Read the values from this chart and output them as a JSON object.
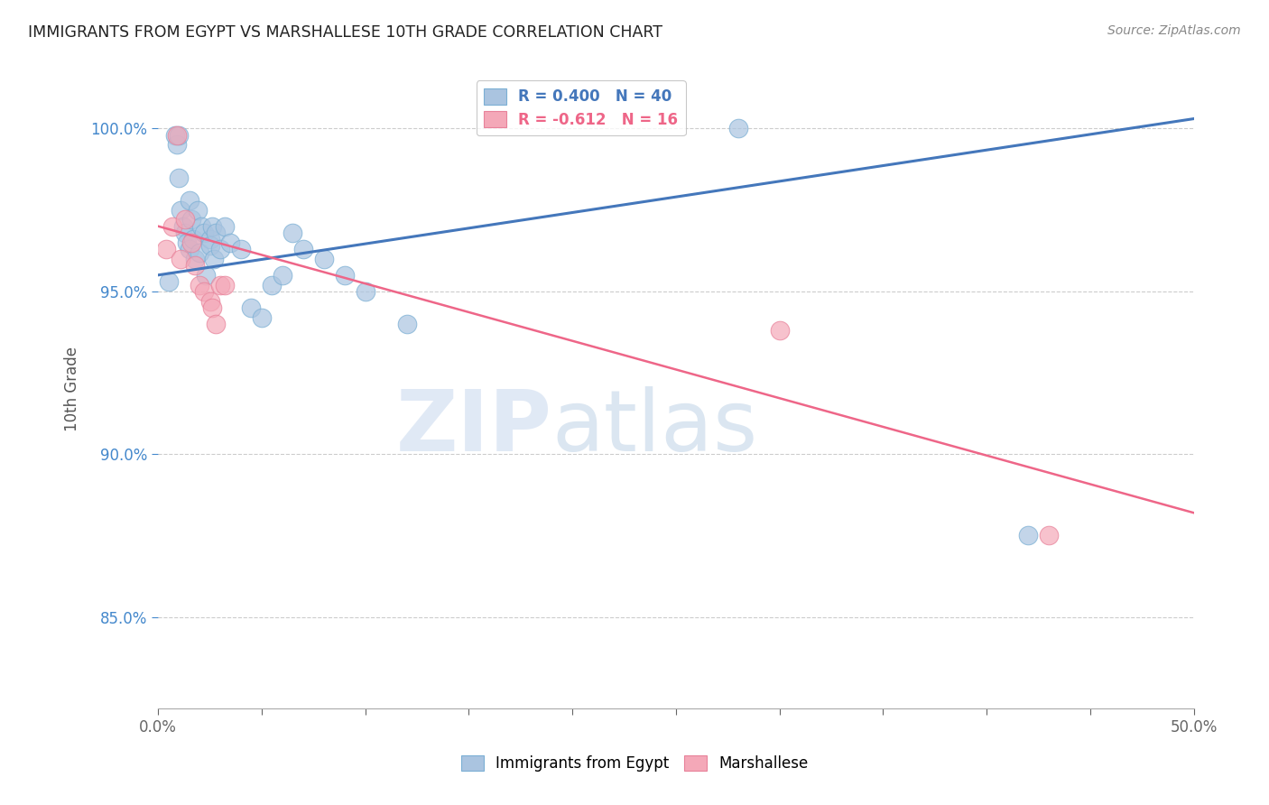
{
  "title": "IMMIGRANTS FROM EGYPT VS MARSHALLESE 10TH GRADE CORRELATION CHART",
  "source": "Source: ZipAtlas.com",
  "ylabel": "10th Grade",
  "ytick_labels": [
    "85.0%",
    "90.0%",
    "95.0%",
    "100.0%"
  ],
  "ytick_values": [
    0.85,
    0.9,
    0.95,
    1.0
  ],
  "xmin": 0.0,
  "xmax": 0.5,
  "ymin": 0.822,
  "ymax": 1.018,
  "legend1_label": "R = 0.400   N = 40",
  "legend2_label": "R = -0.612   N = 16",
  "legend1_color": "#aac4e0",
  "legend2_color": "#f4a8b8",
  "line1_color": "#4477bb",
  "line2_color": "#ee6688",
  "watermark_zip": "ZIP",
  "watermark_atlas": "atlas",
  "grid_color": "#cccccc",
  "background_color": "#ffffff",
  "egypt_x": [
    0.005,
    0.008,
    0.009,
    0.01,
    0.01,
    0.011,
    0.012,
    0.013,
    0.014,
    0.015,
    0.015,
    0.016,
    0.017,
    0.018,
    0.019,
    0.02,
    0.021,
    0.022,
    0.023,
    0.025,
    0.025,
    0.026,
    0.027,
    0.028,
    0.03,
    0.032,
    0.035,
    0.04,
    0.045,
    0.05,
    0.055,
    0.06,
    0.065,
    0.07,
    0.08,
    0.09,
    0.1,
    0.12,
    0.28,
    0.42
  ],
  "egypt_y": [
    0.953,
    0.998,
    0.995,
    0.985,
    0.998,
    0.975,
    0.97,
    0.968,
    0.965,
    0.978,
    0.963,
    0.972,
    0.966,
    0.96,
    0.975,
    0.962,
    0.97,
    0.968,
    0.955,
    0.966,
    0.964,
    0.97,
    0.96,
    0.968,
    0.963,
    0.97,
    0.965,
    0.963,
    0.945,
    0.942,
    0.952,
    0.955,
    0.968,
    0.963,
    0.96,
    0.955,
    0.95,
    0.94,
    1.0,
    0.875
  ],
  "marsh_x": [
    0.004,
    0.007,
    0.009,
    0.011,
    0.013,
    0.016,
    0.018,
    0.02,
    0.022,
    0.025,
    0.026,
    0.028,
    0.03,
    0.032,
    0.3,
    0.43
  ],
  "marsh_y": [
    0.963,
    0.97,
    0.998,
    0.96,
    0.972,
    0.965,
    0.958,
    0.952,
    0.95,
    0.947,
    0.945,
    0.94,
    0.952,
    0.952,
    0.938,
    0.875
  ],
  "line1_x0": 0.0,
  "line1_x1": 0.5,
  "line1_y0": 0.955,
  "line1_y1": 1.003,
  "line2_x0": 0.0,
  "line2_x1": 0.5,
  "line2_y0": 0.97,
  "line2_y1": 0.882
}
